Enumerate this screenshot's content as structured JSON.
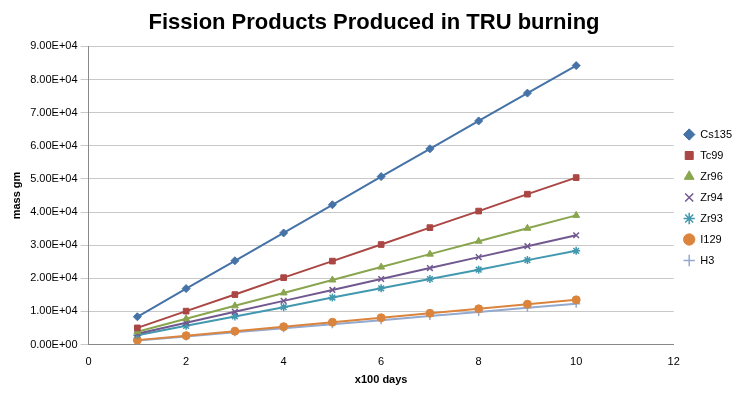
{
  "chart_data": {
    "type": "line",
    "title": "Fission Products Produced in TRU burning",
    "x_label": "x100 days",
    "y_label": "mass gm",
    "x": [
      1,
      2,
      3,
      4,
      5,
      6,
      7,
      8,
      9,
      10
    ],
    "xlim": [
      0,
      12
    ],
    "xticks": [
      0,
      2,
      4,
      6,
      8,
      10,
      12
    ],
    "ylim": [
      0,
      90000
    ],
    "yticks": [
      {
        "value": 0,
        "label": "0.00E+00"
      },
      {
        "value": 10000,
        "label": "1.00E+04"
      },
      {
        "value": 20000,
        "label": "2.00E+04"
      },
      {
        "value": 30000,
        "label": "3.00E+04"
      },
      {
        "value": 40000,
        "label": "4.00E+04"
      },
      {
        "value": 50000,
        "label": "5.00E+04"
      },
      {
        "value": 60000,
        "label": "6.00E+04"
      },
      {
        "value": 70000,
        "label": "7.00E+04"
      },
      {
        "value": 80000,
        "label": "8.00E+04"
      },
      {
        "value": 90000,
        "label": "9.00E+04"
      }
    ],
    "grid": true,
    "legend": "right",
    "series": [
      {
        "name": "Cs135",
        "color": "#4572A7",
        "marker": "diamond",
        "values": [
          8400,
          16900,
          25300,
          33700,
          42200,
          50700,
          59100,
          67500,
          75900,
          84200
        ]
      },
      {
        "name": "Tc99",
        "color": "#AA4643",
        "marker": "square",
        "values": [
          5040,
          10100,
          15100,
          20200,
          25200,
          30200,
          35300,
          40300,
          45400,
          50400
        ]
      },
      {
        "name": "Zr96",
        "color": "#89A54E",
        "marker": "triangle",
        "values": [
          3900,
          7800,
          11700,
          15600,
          19500,
          23400,
          27300,
          31200,
          35100,
          39000
        ]
      },
      {
        "name": "Zr94",
        "color": "#71588F",
        "marker": "x",
        "values": [
          3300,
          6600,
          9900,
          13200,
          16500,
          19800,
          23100,
          26400,
          29700,
          33000
        ]
      },
      {
        "name": "Zr93",
        "color": "#4198AF",
        "marker": "star",
        "values": [
          2830,
          5660,
          8490,
          11300,
          14200,
          17000,
          19800,
          22600,
          25500,
          28300
        ]
      },
      {
        "name": "I129",
        "color": "#DB843D",
        "marker": "circle",
        "values": [
          1350,
          2700,
          4050,
          5400,
          6750,
          8100,
          9450,
          10800,
          12200,
          13500
        ]
      },
      {
        "name": "H3",
        "color": "#93A9CF",
        "marker": "plus",
        "values": [
          1230,
          2460,
          3690,
          4920,
          6150,
          7380,
          8610,
          9840,
          11100,
          12300
        ]
      }
    ]
  }
}
